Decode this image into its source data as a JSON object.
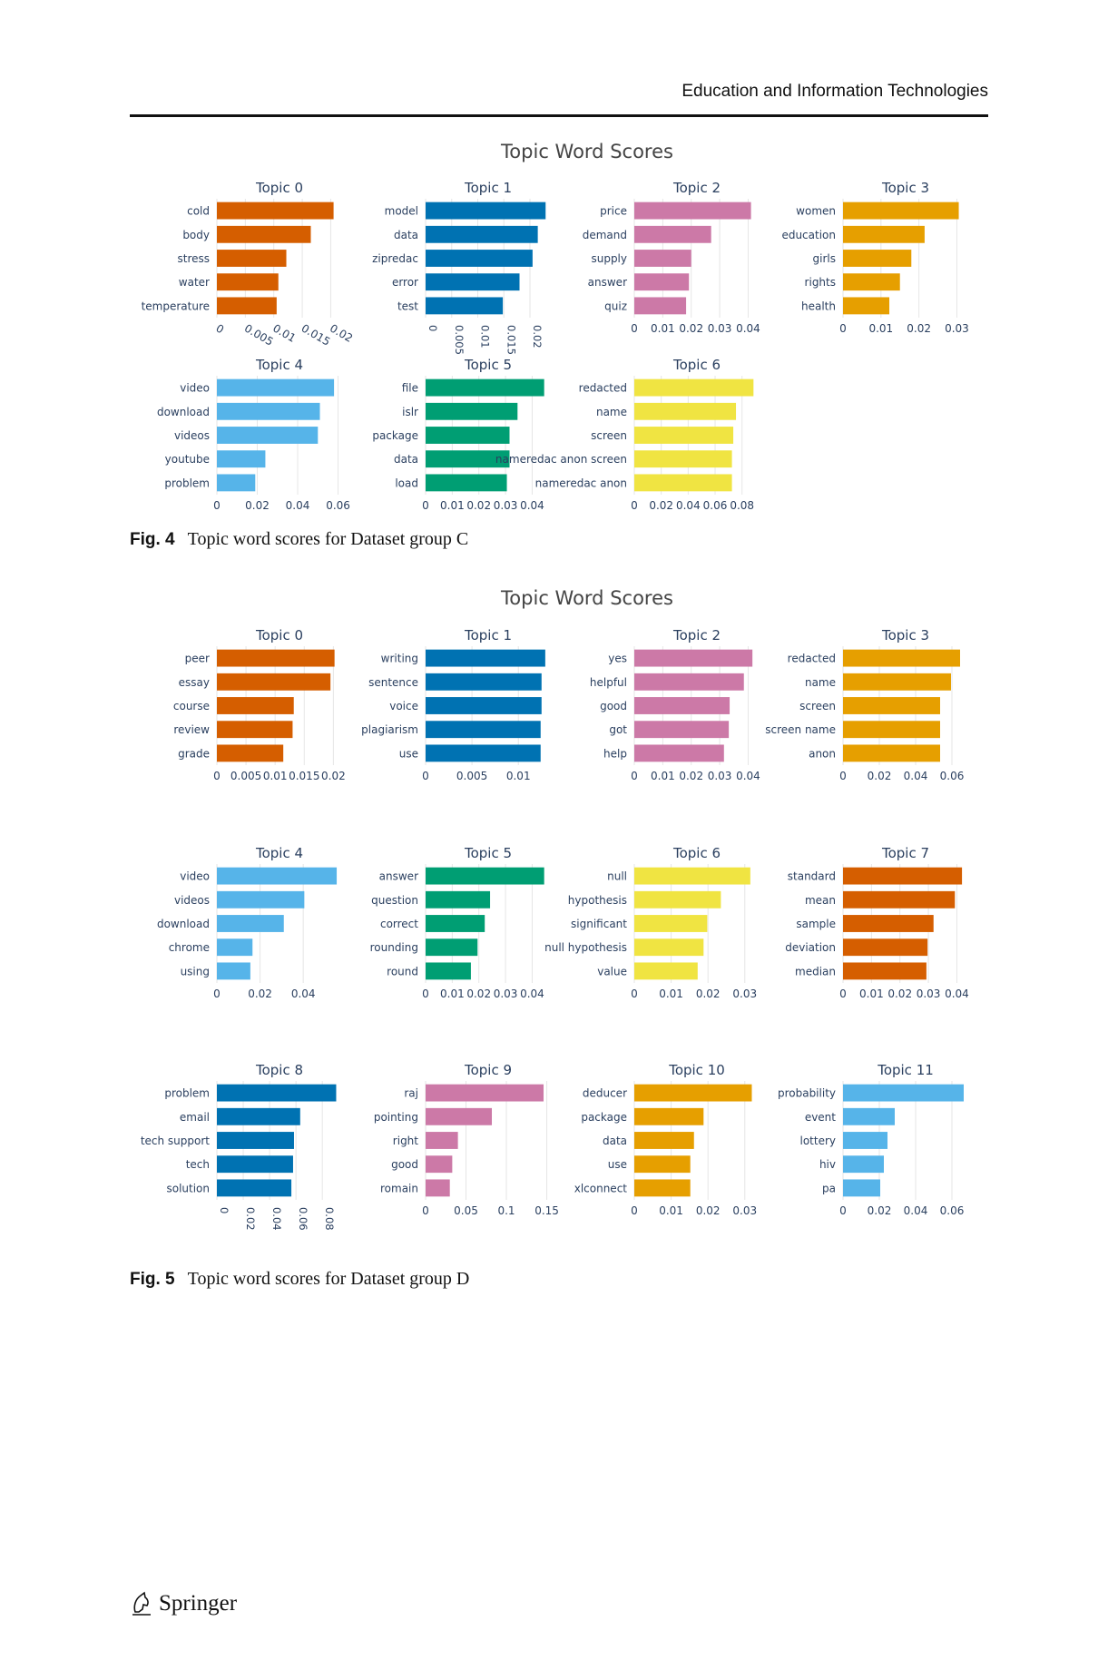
{
  "header": {
    "journal": "Education and Information Technologies"
  },
  "captions": {
    "fig4": {
      "label": "Fig. 4",
      "text": "Topic word scores for Dataset group C"
    },
    "fig5": {
      "label": "Fig. 5",
      "text": "Topic word scores for Dataset group D"
    }
  },
  "footer": {
    "publisher": "Springer"
  },
  "colors": {
    "orange": "#d55e00",
    "blue": "#0072b2",
    "pink": "#cc79a7",
    "gold": "#e69f00",
    "skyblue": "#56b4e9",
    "green": "#009e73",
    "yellow": "#f0e442",
    "grid": "#e6e6e6",
    "text": "#2a3f5f"
  },
  "chart_data": [
    {
      "type": "bar",
      "title": "Topic Word Scores",
      "subplots": [
        {
          "title": "Topic 0",
          "color": "orange",
          "words": [
            "cold",
            "body",
            "stress",
            "water",
            "temperature"
          ],
          "values": [
            0.0205,
            0.0165,
            0.0122,
            0.0108,
            0.0105
          ],
          "ticks": [
            "0",
            "0.005",
            "0.01",
            "0.015",
            "0.02"
          ],
          "xlim": [
            0,
            0.022
          ],
          "tick_angle": 30
        },
        {
          "title": "Topic 1",
          "color": "blue",
          "words": [
            "model",
            "data",
            "zipredac",
            "error",
            "test"
          ],
          "values": [
            0.023,
            0.0215,
            0.0205,
            0.018,
            0.0148
          ],
          "ticks": [
            "0",
            "0.005",
            "0.01",
            "0.015",
            "0.02"
          ],
          "xlim": [
            0,
            0.024
          ],
          "tick_angle": 90
        },
        {
          "title": "Topic 2",
          "color": "pink",
          "words": [
            "price",
            "demand",
            "supply",
            "answer",
            "quiz"
          ],
          "values": [
            0.041,
            0.027,
            0.02,
            0.0192,
            0.0182
          ],
          "ticks": [
            "0",
            "0.01",
            "0.02",
            "0.03",
            "0.04"
          ],
          "xlim": [
            0,
            0.044
          ],
          "tick_angle": 0
        },
        {
          "title": "Topic 3",
          "color": "gold",
          "words": [
            "women",
            "education",
            "girls",
            "rights",
            "health"
          ],
          "values": [
            0.0305,
            0.0215,
            0.018,
            0.015,
            0.0122
          ],
          "ticks": [
            "0",
            "0.01",
            "0.02",
            "0.03"
          ],
          "xlim": [
            0,
            0.033
          ],
          "tick_angle": 0
        },
        {
          "title": "Topic 4",
          "color": "skyblue",
          "words": [
            "video",
            "download",
            "videos",
            "youtube",
            "problem"
          ],
          "values": [
            0.058,
            0.051,
            0.05,
            0.024,
            0.019
          ],
          "ticks": [
            "0",
            "0.02",
            "0.04",
            "0.06"
          ],
          "xlim": [
            0,
            0.062
          ],
          "tick_angle": 0
        },
        {
          "title": "Topic 5",
          "color": "green",
          "words": [
            "file",
            "islr",
            "package",
            "data",
            "load"
          ],
          "values": [
            0.0445,
            0.0345,
            0.0315,
            0.0315,
            0.0305
          ],
          "ticks": [
            "0",
            "0.01",
            "0.02",
            "0.03",
            "0.04"
          ],
          "xlim": [
            0,
            0.047
          ],
          "tick_angle": 0
        },
        {
          "title": "Topic 6",
          "color": "yellow",
          "words": [
            "redacted",
            "name",
            "screen",
            "nameredac anon screen",
            "nameredac anon"
          ],
          "values": [
            0.0885,
            0.0755,
            0.0735,
            0.0725,
            0.0725
          ],
          "ticks": [
            "0",
            "0.02",
            "0.04",
            "0.06",
            "0.08"
          ],
          "xlim": [
            0,
            0.093
          ],
          "tick_angle": 0
        }
      ]
    },
    {
      "type": "bar",
      "title": "Topic Word Scores",
      "subplots": [
        {
          "title": "Topic 0",
          "color": "orange",
          "words": [
            "peer",
            "essay",
            "course",
            "review",
            "grade"
          ],
          "values": [
            0.0202,
            0.0195,
            0.0132,
            0.013,
            0.0114
          ],
          "ticks": [
            "0",
            "0.005",
            "0.01",
            "0.015",
            "0.02"
          ],
          "xlim": [
            0,
            0.0215
          ],
          "tick_angle": 0
        },
        {
          "title": "Topic 1",
          "color": "blue",
          "words": [
            "writing",
            "sentence",
            "voice",
            "plagiarism",
            "use"
          ],
          "values": [
            0.0129,
            0.0125,
            0.0125,
            0.0124,
            0.0124
          ],
          "ticks": [
            "0",
            "0.005",
            "0.01"
          ],
          "xlim": [
            0,
            0.0135
          ],
          "tick_angle": 0
        },
        {
          "title": "Topic 2",
          "color": "pink",
          "words": [
            "yes",
            "helpful",
            "good",
            "got",
            "help"
          ],
          "values": [
            0.0415,
            0.0385,
            0.0335,
            0.0332,
            0.0315
          ],
          "ticks": [
            "0",
            "0.01",
            "0.02",
            "0.03",
            "0.04"
          ],
          "xlim": [
            0,
            0.044
          ],
          "tick_angle": 0
        },
        {
          "title": "Topic 3",
          "color": "gold",
          "words": [
            "redacted",
            "name",
            "screen",
            "screen name",
            "anon"
          ],
          "values": [
            0.0645,
            0.0595,
            0.0535,
            0.0535,
            0.0535
          ],
          "ticks": [
            "0",
            "0.02",
            "0.04",
            "0.06"
          ],
          "xlim": [
            0,
            0.069
          ],
          "tick_angle": 0
        },
        {
          "title": "Topic 4",
          "color": "skyblue",
          "words": [
            "video",
            "videos",
            "download",
            "chrome",
            "using"
          ],
          "values": [
            0.0555,
            0.0405,
            0.031,
            0.0165,
            0.0155
          ],
          "ticks": [
            "0",
            "0.02",
            "0.04"
          ],
          "xlim": [
            0,
            0.058
          ],
          "tick_angle": 0
        },
        {
          "title": "Topic 5",
          "color": "green",
          "words": [
            "answer",
            "question",
            "correct",
            "rounding",
            "round"
          ],
          "values": [
            0.0445,
            0.0242,
            0.0222,
            0.0195,
            0.017
          ],
          "ticks": [
            "0",
            "0.01",
            "0.02",
            "0.03",
            "0.04"
          ],
          "xlim": [
            0,
            0.047
          ],
          "tick_angle": 0
        },
        {
          "title": "Topic 6",
          "color": "yellow",
          "words": [
            "null",
            "hypothesis",
            "significant",
            "null hypothesis",
            "value"
          ],
          "values": [
            0.0315,
            0.0235,
            0.0198,
            0.0188,
            0.0172
          ],
          "ticks": [
            "0",
            "0.01",
            "0.02",
            "0.03"
          ],
          "xlim": [
            0,
            0.034
          ],
          "tick_angle": 0
        },
        {
          "title": "Topic 7",
          "color": "orange",
          "words": [
            "standard",
            "mean",
            "sample",
            "deviation",
            "median"
          ],
          "values": [
            0.0418,
            0.0393,
            0.0318,
            0.0297,
            0.0293
          ],
          "ticks": [
            "0",
            "0.01",
            "0.02",
            "0.03",
            "0.04"
          ],
          "xlim": [
            0,
            0.044
          ],
          "tick_angle": 0
        },
        {
          "title": "Topic 8",
          "color": "blue",
          "words": [
            "problem",
            "email",
            "tech support",
            "tech",
            "solution"
          ],
          "values": [
            0.0905,
            0.0632,
            0.0585,
            0.0578,
            0.0565
          ],
          "ticks": [
            "0",
            "0.02",
            "0.04",
            "0.06",
            "0.08"
          ],
          "xlim": [
            0,
            0.095
          ],
          "tick_angle": 90
        },
        {
          "title": "Topic 9",
          "color": "pink",
          "words": [
            "raj",
            "pointing",
            "right",
            "good",
            "romain"
          ],
          "values": [
            0.146,
            0.082,
            0.04,
            0.033,
            0.03
          ],
          "ticks": [
            "0",
            "0.05",
            "0.1",
            "0.15"
          ],
          "xlim": [
            0,
            0.155
          ],
          "tick_angle": 0
        },
        {
          "title": "Topic 10",
          "color": "gold",
          "words": [
            "deducer",
            "package",
            "data",
            "use",
            "xlconnect"
          ],
          "values": [
            0.0319,
            0.0188,
            0.0162,
            0.0152,
            0.0152
          ],
          "ticks": [
            "0",
            "0.01",
            "0.02",
            "0.03"
          ],
          "xlim": [
            0,
            0.034
          ],
          "tick_angle": 0
        },
        {
          "title": "Topic 11",
          "color": "skyblue",
          "words": [
            "probability",
            "event",
            "lottery",
            "hiv",
            "pa"
          ],
          "values": [
            0.0665,
            0.0285,
            0.0245,
            0.0225,
            0.0205
          ],
          "ticks": [
            "0",
            "0.02",
            "0.04",
            "0.06"
          ],
          "xlim": [
            0,
            0.069
          ],
          "tick_angle": 0
        }
      ]
    }
  ]
}
